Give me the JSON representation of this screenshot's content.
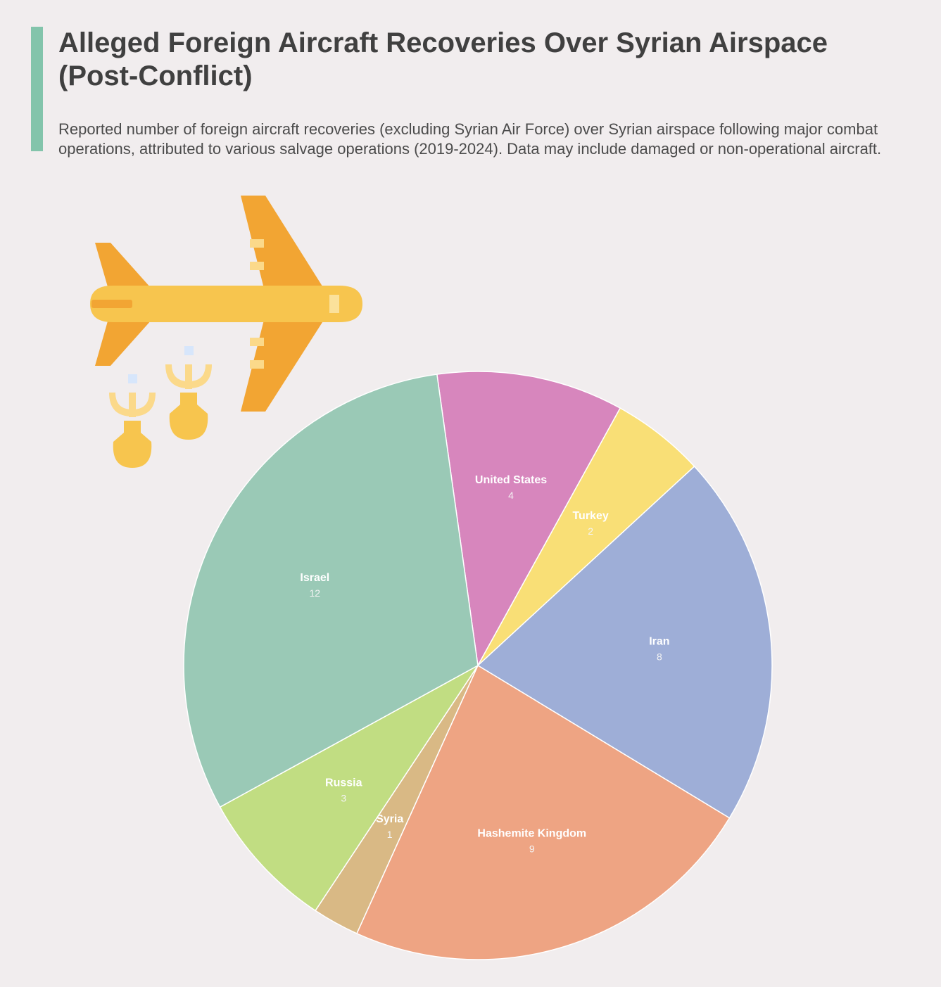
{
  "header": {
    "title": "Alleged Foreign Aircraft Recoveries Over Syrian Airspace (Post-Conflict)",
    "subtitle": "Reported number of foreign aircraft recoveries (excluding Syrian Air Force) over Syrian airspace following major combat operations, attributed to various salvage operations (2019-2024). Data may include damaged or non-operational aircraft.",
    "accent_color": "#83c4ab"
  },
  "illustration": {
    "icon": "airplane-dropping-bombs-icon"
  },
  "chart_data": {
    "type": "pie",
    "start_angle_deg": -8,
    "direction": "clockwise",
    "slices": [
      {
        "label": "United States",
        "value": 4,
        "color": "#d786bd"
      },
      {
        "label": "Turkey",
        "value": 2,
        "color": "#f9df76"
      },
      {
        "label": "Iran",
        "value": 8,
        "color": "#9eaed7"
      },
      {
        "label": "Hashemite Kingdom",
        "value": 9,
        "color": "#eea483"
      },
      {
        "label": "Syria",
        "value": 1,
        "color": "#d9b985"
      },
      {
        "label": "Russia",
        "value": 3,
        "color": "#c1dd82"
      },
      {
        "label": "Israel",
        "value": 12,
        "color": "#9ac9b6"
      }
    ]
  }
}
